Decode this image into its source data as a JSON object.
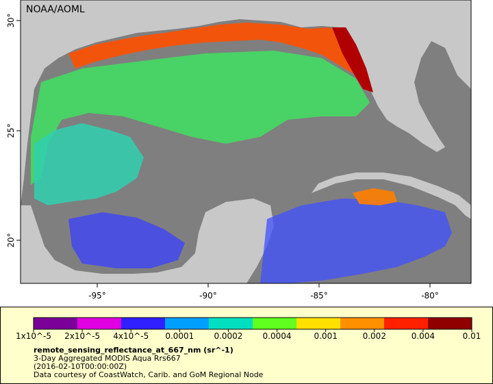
{
  "map": {
    "credit": "NOAA/AOML",
    "lon_ticks": [
      "-95°",
      "-90°",
      "-85°",
      "-80°"
    ],
    "lat_ticks": [
      "30°",
      "25°",
      "20°"
    ]
  },
  "legend": {
    "ticks": [
      "1x10^-5",
      "2x10^-5",
      "4x10^-5",
      "0.0001",
      "0.0002",
      "0.0004",
      "0.001",
      "0.002",
      "0.004",
      "0.01"
    ],
    "colors": [
      "#7a0099",
      "#e000e0",
      "#3020ff",
      "#00a0ff",
      "#00e0c0",
      "#60ff20",
      "#ffe000",
      "#ff9000",
      "#ff2000",
      "#900000"
    ],
    "title": "remote_sensing_reflectance_at_667_nm (sr^-1)",
    "line1": "3-Day Aggregated MODIS Aqua Rrs667",
    "line2": "(2016-02-10T00:00:00Z)",
    "line3": "Data courtesy of CoastWatch, Carib. and GoM Regional Node"
  }
}
